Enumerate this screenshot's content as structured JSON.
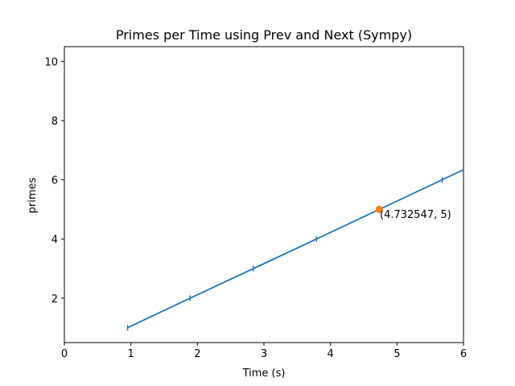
{
  "chart_data": {
    "type": "line",
    "title": "Primes per Time using Prev and Next (Sympy)",
    "xlabel": "Time (s)",
    "ylabel": "primes",
    "xlim": [
      0,
      6
    ],
    "ylim": [
      0.5,
      10.5
    ],
    "x_ticks": [
      0,
      1,
      2,
      3,
      4,
      5,
      6
    ],
    "y_ticks": [
      2,
      4,
      6,
      8,
      10
    ],
    "grid": false,
    "series": [
      {
        "color": "#1f77b4",
        "marker": "vertical-tick",
        "points": [
          {
            "x": 0.95,
            "y": 1
          },
          {
            "x": 1.89,
            "y": 2
          },
          {
            "x": 2.84,
            "y": 3
          },
          {
            "x": 3.79,
            "y": 4
          },
          {
            "x": 5.68,
            "y": 6
          }
        ],
        "line_extends_to": {
          "x": 6.0,
          "y": 6.34
        }
      }
    ],
    "highlight": {
      "x": 4.732547,
      "y": 5,
      "color": "#ff7f0e",
      "label": "(4.732547, 5)"
    }
  }
}
